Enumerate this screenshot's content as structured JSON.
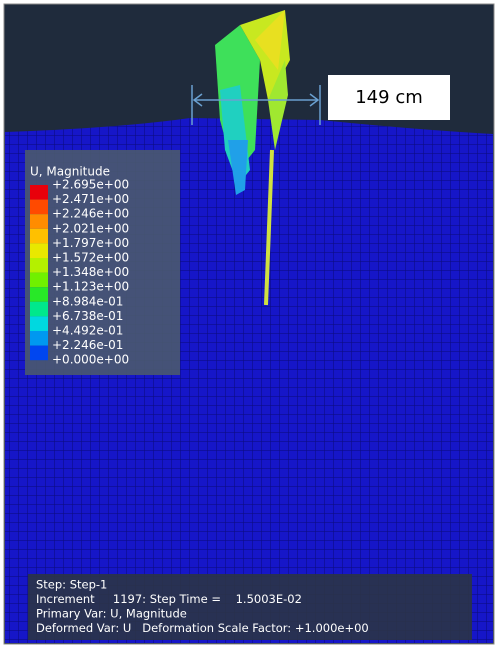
{
  "annotation": "149 cm",
  "legend": {
    "title": "U, Magnitude",
    "labels": [
      "+2.695e+00",
      "+2.471e+00",
      "+2.246e+00",
      "+2.021e+00",
      "+1.797e+00",
      "+1.572e+00",
      "+1.348e+00",
      "+1.123e+00",
      "+8.984e-01",
      "+6.738e-01",
      "+4.492e-01",
      "+2.246e-01",
      "+0.000e+00"
    ]
  },
  "info": {
    "lines": [
      "Step: Step-1",
      "Increment     1197: Step Time =    1.5003E-02",
      "Primary Var: U, Magnitude",
      "Deformed Var: U   Deformation Scale Factor: +1.000e+00"
    ]
  }
}
